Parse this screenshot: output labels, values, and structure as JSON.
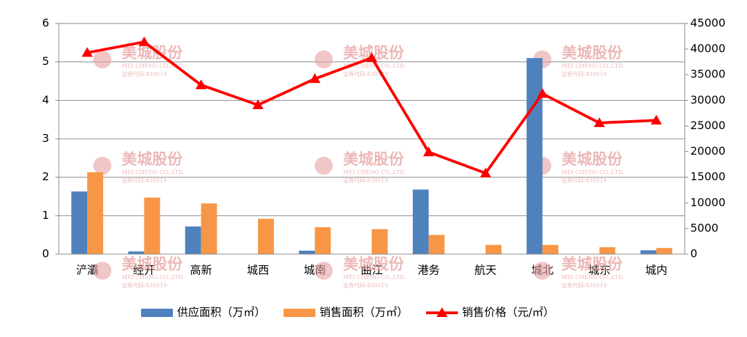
{
  "chart_data": {
    "type": "bar_line",
    "categories": [
      "浐灞",
      "经开",
      "高新",
      "城西",
      "城南",
      "曲江",
      "港务",
      "航天",
      "城北",
      "城东",
      "城内"
    ],
    "series": [
      {
        "name": "供应面积（万㎡）",
        "type": "bar",
        "color": "#4f81bd",
        "values": [
          1.63,
          0.07,
          0.72,
          0,
          0.09,
          0,
          1.68,
          0,
          5.1,
          0,
          0.1
        ]
      },
      {
        "name": "销售面积（万㎡）",
        "type": "bar",
        "color": "#f79646",
        "values": [
          2.13,
          1.47,
          1.32,
          0.92,
          0.7,
          0.65,
          0.5,
          0.24,
          0.24,
          0.18,
          0.16
        ]
      },
      {
        "name": "销售价格（元/㎡）",
        "type": "line",
        "axis": "y2",
        "color": "#ff0000",
        "values": [
          39300,
          41400,
          33000,
          29100,
          34200,
          38300,
          19900,
          15800,
          31300,
          25600,
          26100
        ]
      }
    ],
    "ylim": [
      0,
      6
    ],
    "yticks": [
      0,
      1,
      2,
      3,
      4,
      5,
      6
    ],
    "y2lim": [
      0,
      45000
    ],
    "y2ticks": [
      0,
      5000,
      10000,
      15000,
      20000,
      25000,
      30000,
      35000,
      40000,
      45000
    ],
    "grid": true,
    "legend": "bottom",
    "watermark": [
      "美城股份",
      "MEI CHENG CO.,LTD.",
      "证券代码:839519"
    ]
  }
}
